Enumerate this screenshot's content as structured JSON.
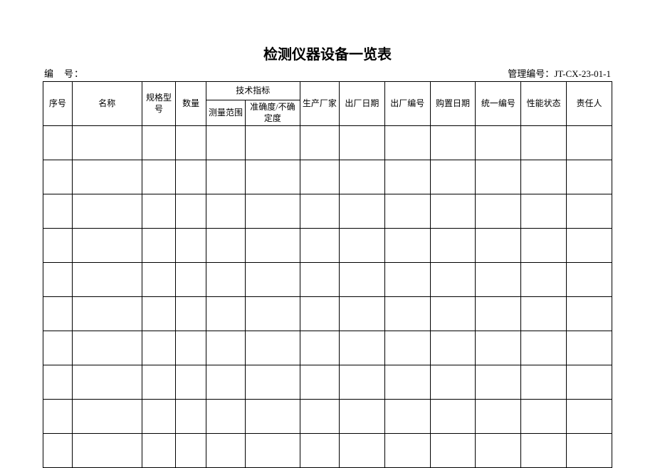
{
  "title": "检测仪器设备一览表",
  "meta": {
    "left_label": "编　号：",
    "right_label": "管理编号：",
    "right_value": "JT-CX-23-01-1"
  },
  "table": {
    "tech_group": "技术指标",
    "headers": {
      "seq": "序号",
      "name": "名称",
      "spec": "规格型号",
      "qty": "数量",
      "meas_range": "测量范围",
      "accuracy": "准确度/不确定度",
      "maker": "生产厂家",
      "out_date": "出厂日期",
      "out_no": "出厂编号",
      "buy_date": "购置日期",
      "uni_no": "统一编号",
      "status": "性能状态",
      "resp": "责任人"
    },
    "body_row_count": 10,
    "columns": [
      {
        "key": "seq",
        "width_pct": 4.8
      },
      {
        "key": "name",
        "width_pct": 11.5
      },
      {
        "key": "spec",
        "width_pct": 5.6
      },
      {
        "key": "qty",
        "width_pct": 5.0
      },
      {
        "key": "meas_range",
        "width_pct": 6.5
      },
      {
        "key": "accuracy",
        "width_pct": 9.0
      },
      {
        "key": "maker",
        "width_pct": 6.5
      },
      {
        "key": "out_date",
        "width_pct": 7.5
      },
      {
        "key": "out_no",
        "width_pct": 7.5
      },
      {
        "key": "buy_date",
        "width_pct": 7.5
      },
      {
        "key": "uni_no",
        "width_pct": 7.5
      },
      {
        "key": "status",
        "width_pct": 7.5
      },
      {
        "key": "resp",
        "width_pct": 7.5
      }
    ],
    "colors": {
      "border": "#000000",
      "background": "#ffffff",
      "text": "#000000"
    },
    "fonts": {
      "title_pt": 20,
      "meta_pt": 13,
      "cell_pt": 12,
      "family": "SimSun"
    }
  }
}
